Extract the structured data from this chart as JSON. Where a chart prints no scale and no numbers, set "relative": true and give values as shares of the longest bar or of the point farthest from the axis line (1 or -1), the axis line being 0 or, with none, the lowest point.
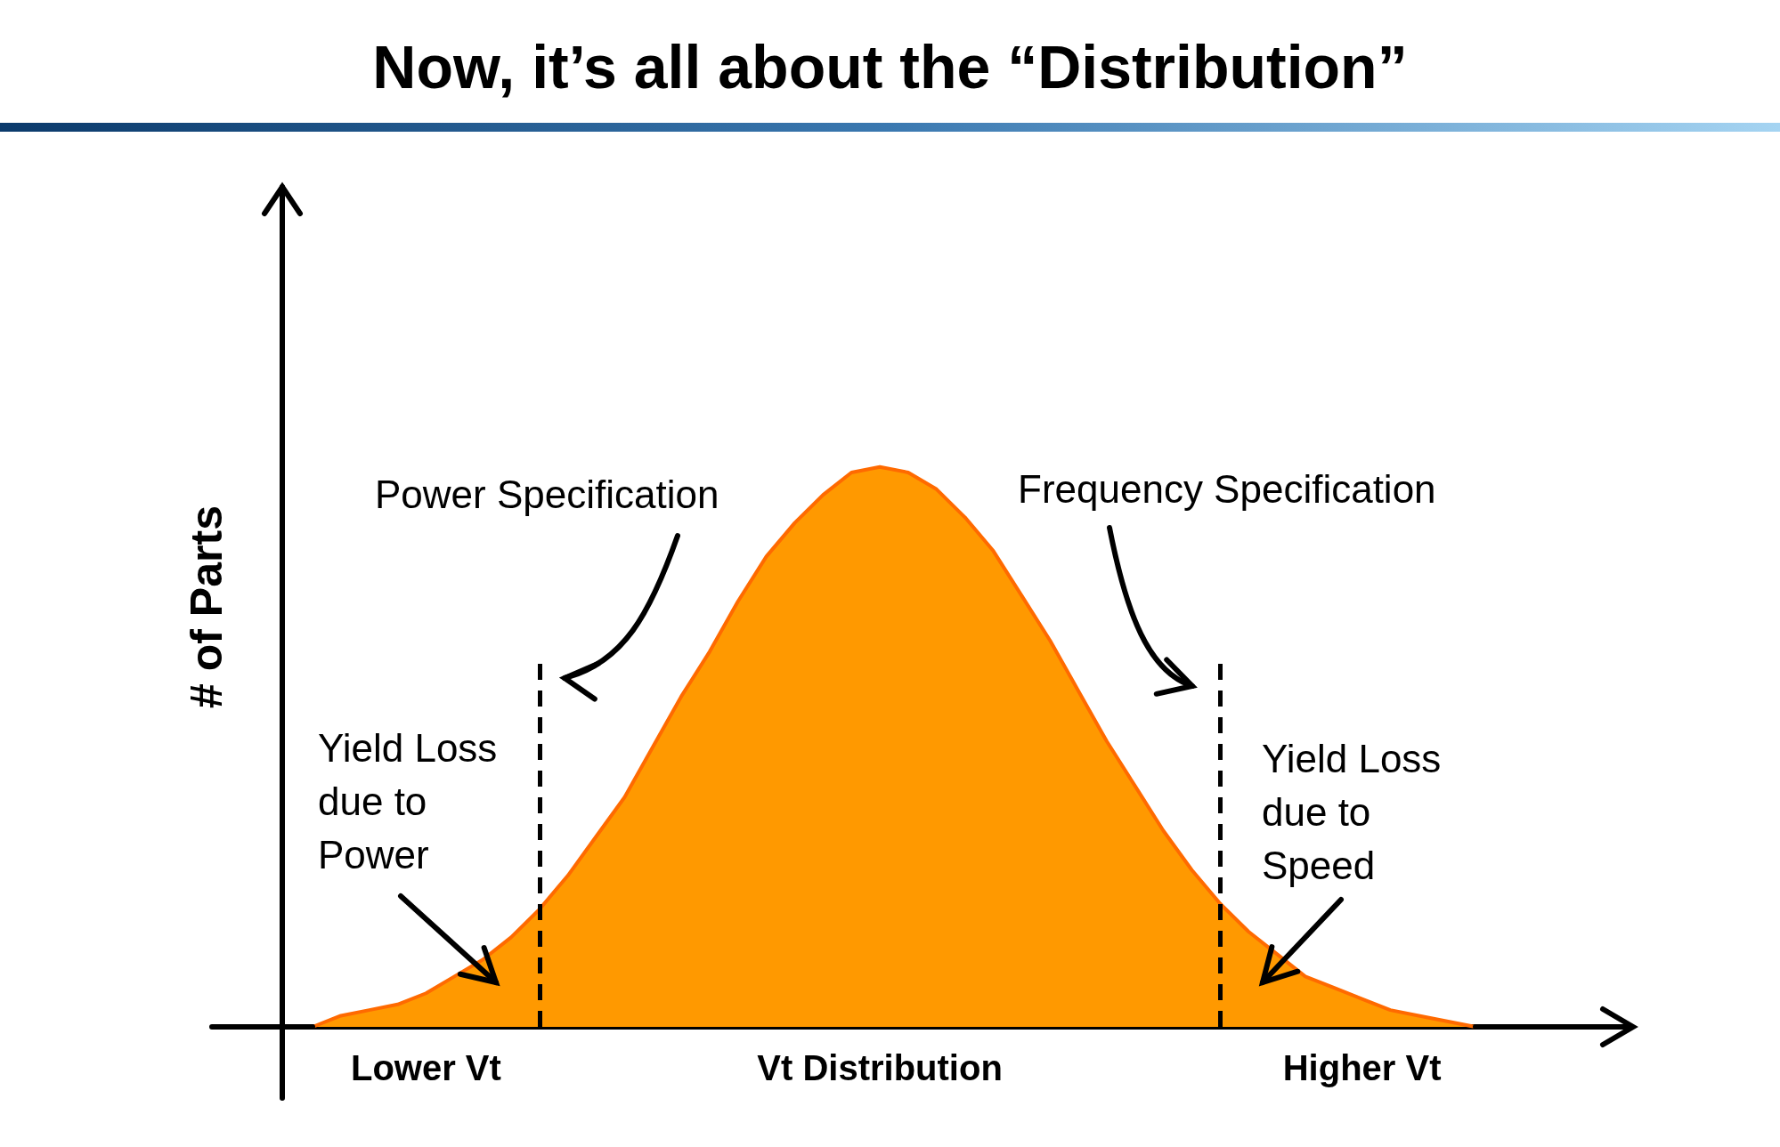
{
  "chart_data": {
    "type": "area",
    "title": "Now, it’s all about the “Distribution”",
    "ylabel": "# of Parts",
    "relative": true,
    "marker": "none",
    "grid": false,
    "categories": [
      null,
      null,
      null,
      null,
      "Lower Vt",
      null,
      null,
      null,
      null,
      null,
      null,
      null,
      null,
      null,
      null,
      null,
      null,
      null,
      null,
      null,
      "Vt Distribution",
      null,
      null,
      null,
      null,
      null,
      null,
      null,
      null,
      null,
      null,
      null,
      null,
      null,
      null,
      null,
      null,
      "Higher Vt",
      null,
      null,
      null,
      null
    ],
    "series": [
      {
        "color": "#ff9900",
        "values": [
          0.0,
          0.02,
          0.03,
          0.04,
          0.06,
          0.09,
          0.12,
          0.16,
          0.21,
          0.27,
          0.34,
          0.41,
          0.5,
          0.59,
          0.67,
          0.76,
          0.84,
          0.9,
          0.95,
          0.99,
          1.0,
          0.99,
          0.96,
          0.91,
          0.85,
          0.77,
          0.69,
          0.6,
          0.51,
          0.43,
          0.35,
          0.28,
          0.22,
          0.17,
          0.13,
          0.09,
          0.07,
          0.05,
          0.03,
          0.02,
          0.01,
          0.0
        ]
      }
    ],
    "annotations": [
      "Power Specification",
      "Frequency Specification",
      "Yield Loss\ndue to\nPower",
      "Yield Loss\ndue to\nSpeed"
    ]
  }
}
